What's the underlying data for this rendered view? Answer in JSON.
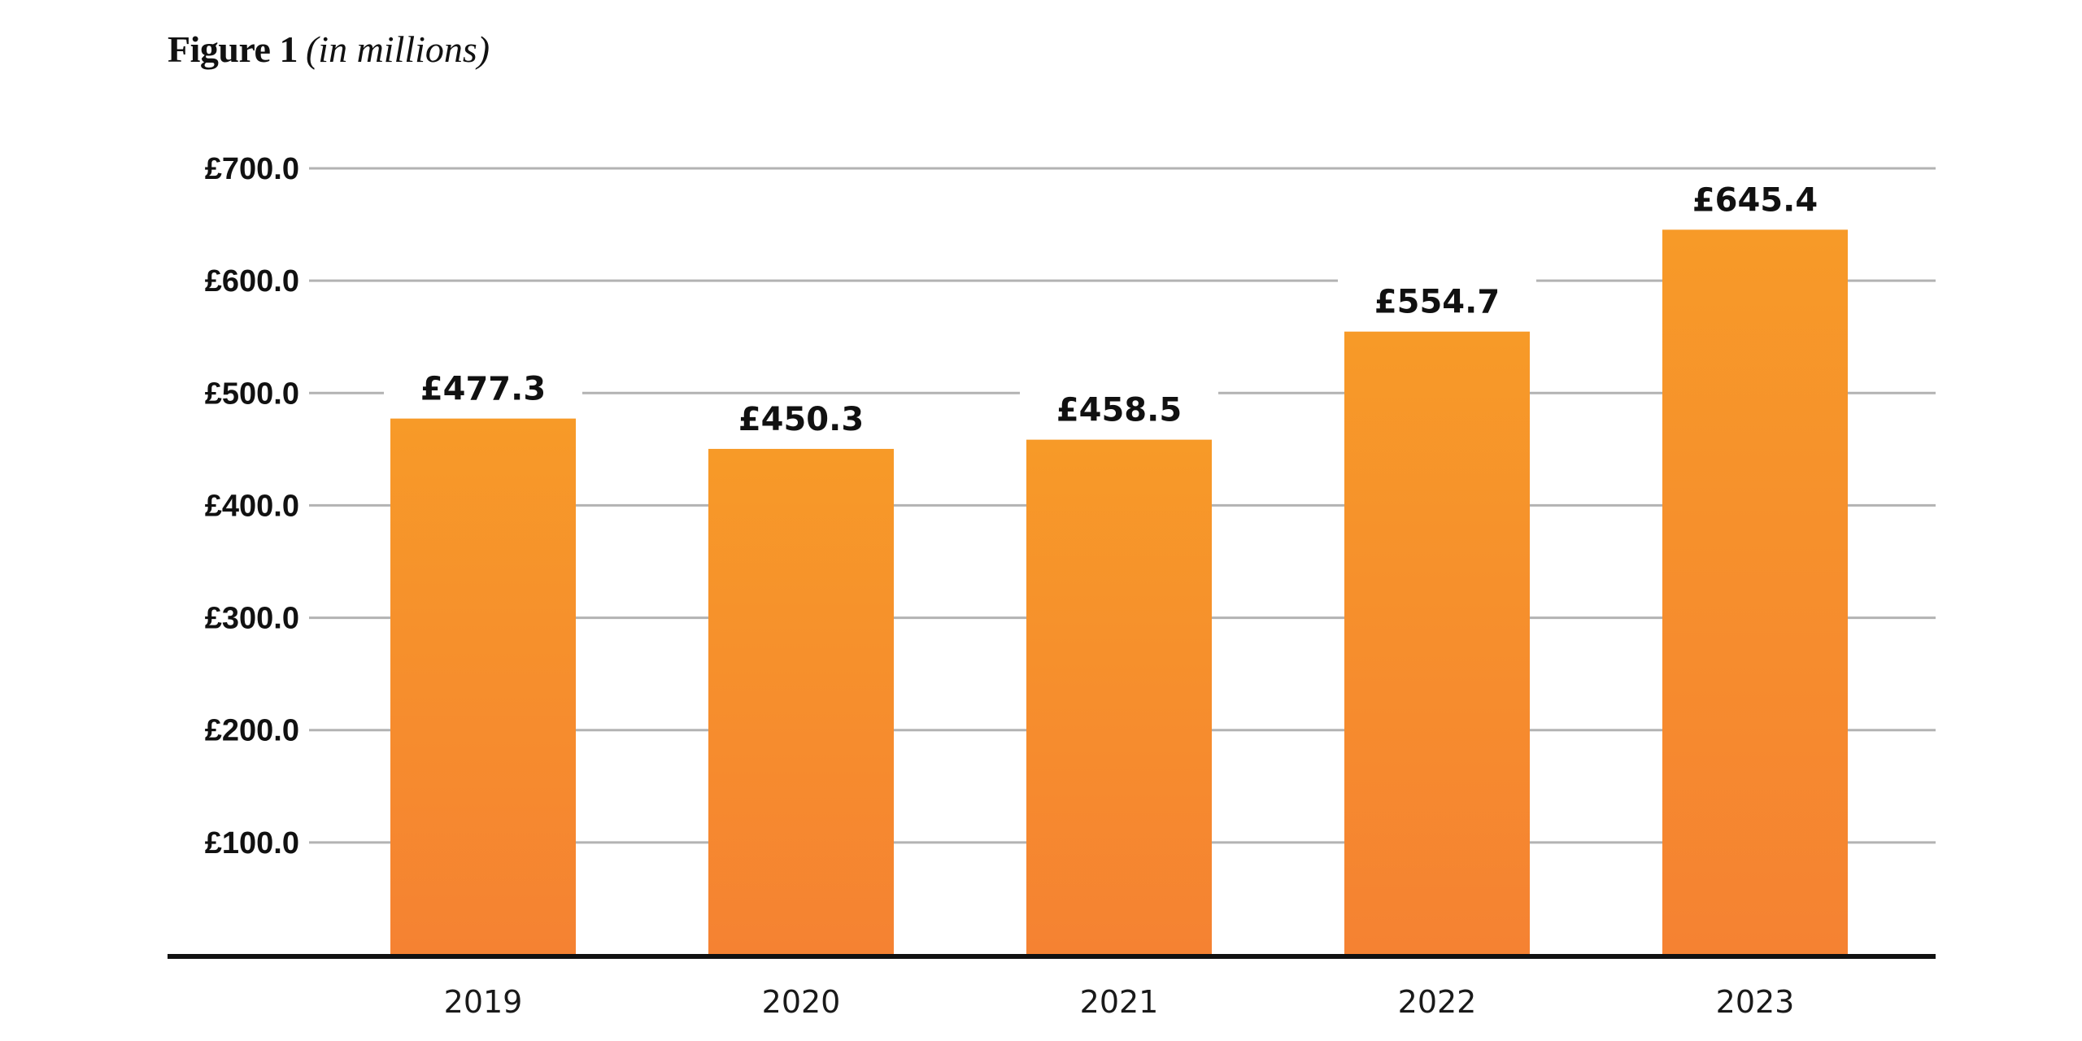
{
  "title": "Figure 1",
  "subtitle": "(in millions)",
  "chart_data": {
    "type": "bar",
    "categories": [
      "2019",
      "2020",
      "2021",
      "2022",
      "2023"
    ],
    "values": [
      477.3,
      450.3,
      458.5,
      554.7,
      645.4
    ],
    "data_labels": [
      "£477.3",
      "£450.3",
      "£458.5",
      "£554.7",
      "£645.4"
    ],
    "yticks": [
      100,
      200,
      300,
      400,
      500,
      600,
      700
    ],
    "ytick_labels": [
      "£100.0",
      "£200.0",
      "£300.0",
      "£400.0",
      "£500.0",
      "£600.0",
      "£700.0"
    ],
    "ylim": [
      0,
      700
    ],
    "grid": true,
    "legend": "none",
    "colors": {
      "bar_top": "#F79A28",
      "bar_bottom": "#F58232",
      "grid": "#b3b3b3",
      "axis": "#111111"
    }
  }
}
